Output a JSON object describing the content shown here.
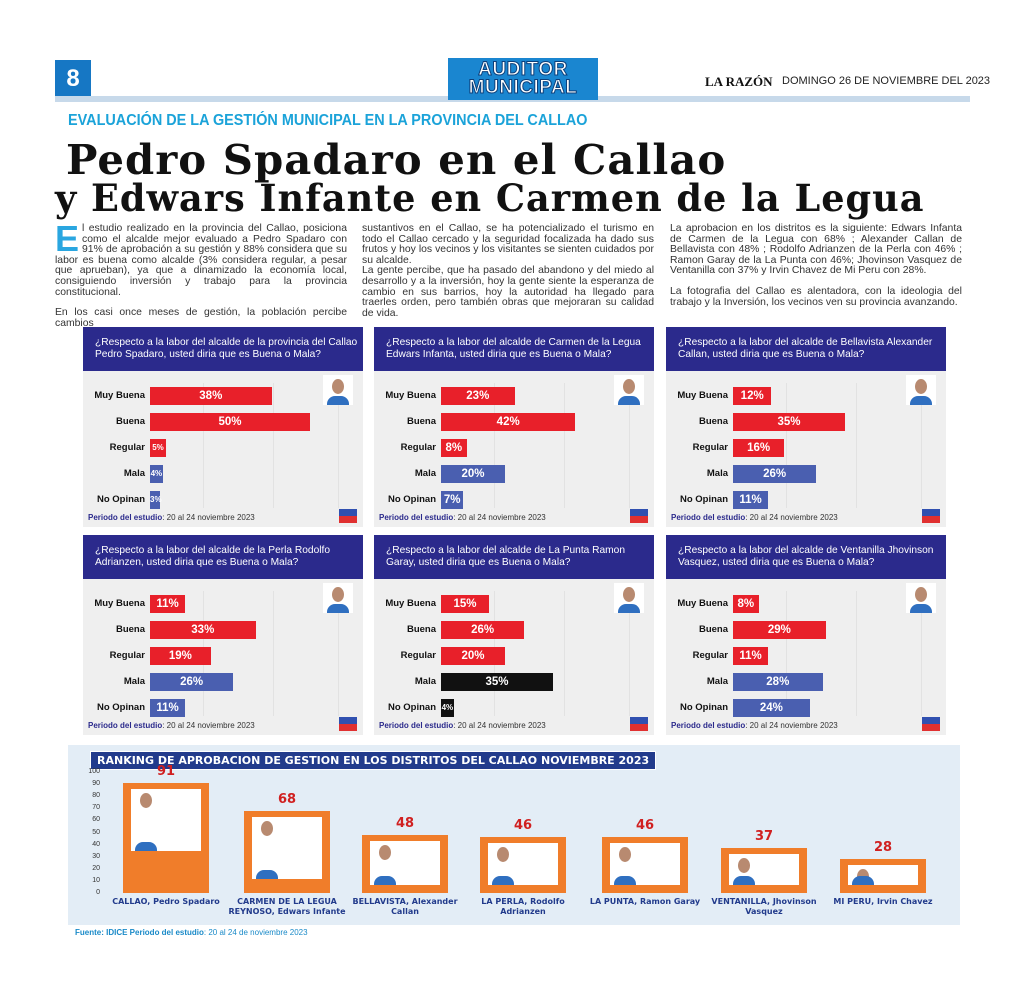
{
  "header": {
    "page_number": "8",
    "logo_line1": "AUDITOR",
    "logo_line2": "MUNICIPAL",
    "paper": "LA RAZÓN",
    "date": "DOMINGO 26 DE NOVIEMBRE DEL 2023"
  },
  "kicker": "EVALUACIÓN DE LA GESTIÓN MUNICIPAL EN LA PROVINCIA DEL CALLAO",
  "headline": [
    "Pedro Spadaro en el Callao",
    "y Edwars Infante en Carmen de la Legua"
  ],
  "body": {
    "drop_cap": "E",
    "col1_p1": "l estudio realizado en la provincia del Callao, posiciona como el alcalde mejor evaluado a Pedro Spadaro con 91% de aprobación a su gestión y 88% considera que su labor es buena como alcalde (3% considera regular, a pesar que aprueban), ya que a dinamizado la economía local, consiguiendo inversión y trabajo para la provincia constitucional.",
    "col1_p2": "En los casi once meses de gestión, la población percibe cambios",
    "col2_p1": "sustantivos en el Callao, se ha potencializado el turismo en todo el Callao cercado y la seguridad focalizada ha dado sus frutos y hoy los vecinos y los visitantes se sienten cuidados por su alcalde.",
    "col2_p2": "La gente percibe, que ha pasado del abandono y del miedo al desarrollo y a la inversión, hoy la gente siente la esperanza de cambio en sus barrios, hoy la autoridad ha llegado para traerles orden, pero también obras que mejoraran su calidad de vida.",
    "col3_p1": "La aprobacion en los distritos es la siguiente: Edwars Infanta de Carmen de la Legua con 68% ; Alexander Callan de Bellavista con 48% ; Rodolfo Adrianzen de la Perla con 46% ; Ramon Garay de la La Punta con 46%; Jhovinson Vasquez de Ventanilla con 37% y Irvin Chavez de Mi Peru con 28%.",
    "col3_p2": "La fotografia del Callao es alentadora, con la ideologia del trabajo y la Inversión, los vecinos ven su provincia avanzando."
  },
  "colors": {
    "good": "#e8202a",
    "bad": "#4a5fb0",
    "black": "#111111",
    "navy": "#2b2a8c",
    "orange": "#f07d2a"
  },
  "chart_data": [
    {
      "type": "bar",
      "title": "¿Respecto a la labor del alcalde de la provincia del Callao Pedro Spadaro, usted diria que es Buena o Mala?",
      "categories": [
        "Muy Buena",
        "Buena",
        "Regular",
        "Mala",
        "No Opinan"
      ],
      "values": [
        38,
        50,
        5,
        4,
        3
      ],
      "labels": [
        "38%",
        "50%",
        "5%",
        "4%",
        "3%"
      ],
      "colors": [
        "good",
        "good",
        "good",
        "bad",
        "bad"
      ],
      "period_label": "Periodo del estudio",
      "period": ": 20 al 24 noviembre 2023"
    },
    {
      "type": "bar",
      "title": "¿Respecto a la labor del alcalde de Carmen de la Legua Edwars Infanta, usted diria que es Buena o Mala?",
      "categories": [
        "Muy Buena",
        "Buena",
        "Regular",
        "Mala",
        "No Opinan"
      ],
      "values": [
        23,
        42,
        8,
        20,
        7
      ],
      "labels": [
        "23%",
        "42%",
        "8%",
        "20%",
        "7%"
      ],
      "colors": [
        "good",
        "good",
        "good",
        "bad",
        "bad"
      ],
      "period_label": "Periodo del estudio",
      "period": ": 20 al 24 noviembre 2023"
    },
    {
      "type": "bar",
      "title": "¿Respecto a la labor del alcalde de Bellavista Alexander Callan, usted diria que es Buena o Mala?",
      "categories": [
        "Muy Buena",
        "Buena",
        "Regular",
        "Mala",
        "No Opinan"
      ],
      "values": [
        12,
        35,
        16,
        26,
        11
      ],
      "labels": [
        "12%",
        "35%",
        "16%",
        "26%",
        "11%"
      ],
      "colors": [
        "good",
        "good",
        "good",
        "bad",
        "bad"
      ],
      "period_label": "Periodo del estudio",
      "period": ": 20 al 24 noviembre 2023"
    },
    {
      "type": "bar",
      "title": "¿Respecto a la labor del alcalde de la Perla Rodolfo Adrianzen, usted diria que es Buena o Mala?",
      "categories": [
        "Muy Buena",
        "Buena",
        "Regular",
        "Mala",
        "No Opinan"
      ],
      "values": [
        11,
        33,
        19,
        26,
        11
      ],
      "labels": [
        "11%",
        "33%",
        "19%",
        "26%",
        "11%"
      ],
      "colors": [
        "good",
        "good",
        "good",
        "bad",
        "bad"
      ],
      "period_label": "Periodo del estudio",
      "period": ": 20 al 24 noviembre 2023"
    },
    {
      "type": "bar",
      "title": "¿Respecto a la labor del alcalde de La Punta Ramon Garay, usted diria que es Buena o Mala?",
      "categories": [
        "Muy Buena",
        "Buena",
        "Regular",
        "Mala",
        "No Opinan"
      ],
      "values": [
        15,
        26,
        20,
        35,
        4
      ],
      "labels": [
        "15%",
        "26%",
        "20%",
        "35%",
        "4%"
      ],
      "colors": [
        "good",
        "good",
        "good",
        "black",
        "black"
      ],
      "period_label": "Periodo del estudio",
      "period": ": 20 al 24 noviembre 2023"
    },
    {
      "type": "bar",
      "title": "¿Respecto a la labor del alcalde de Ventanilla Jhovinson Vasquez, usted diria que es Buena o Mala?",
      "categories": [
        "Muy Buena",
        "Buena",
        "Regular",
        "Mala",
        "No Opinan"
      ],
      "values": [
        8,
        29,
        11,
        28,
        24
      ],
      "labels": [
        "8%",
        "29%",
        "11%",
        "28%",
        "24%"
      ],
      "colors": [
        "good",
        "good",
        "good",
        "bad",
        "bad"
      ],
      "period_label": "Periodo del estudio",
      "period": ": 20 al 24 noviembre 2023"
    },
    {
      "type": "bar",
      "title": "RANKING DE APROBACION DE GESTION EN LOS DISTRITOS DEL CALLAO NOVIEMBRE 2023",
      "categories": [
        "CALLAO, Pedro Spadaro",
        "CARMEN DE LA LEGUA REYNOSO, Edwars Infante",
        "BELLAVISTA, Alexander Callan",
        "LA PERLA, Rodolfo Adrianzen",
        "LA PUNTA, Ramon Garay",
        "VENTANILLA, Jhovinson Vasquez",
        "MI PERU, Irvin Chavez"
      ],
      "values": [
        91,
        68,
        48,
        46,
        46,
        37,
        28
      ],
      "ylim": [
        0,
        100
      ],
      "yticks": [
        0,
        10,
        20,
        30,
        40,
        50,
        60,
        70,
        80,
        90,
        100
      ]
    }
  ],
  "source": {
    "label": "Fuente: IDICE Periodo del estudio",
    "text": ": 20 al 24 de noviembre 2023"
  }
}
